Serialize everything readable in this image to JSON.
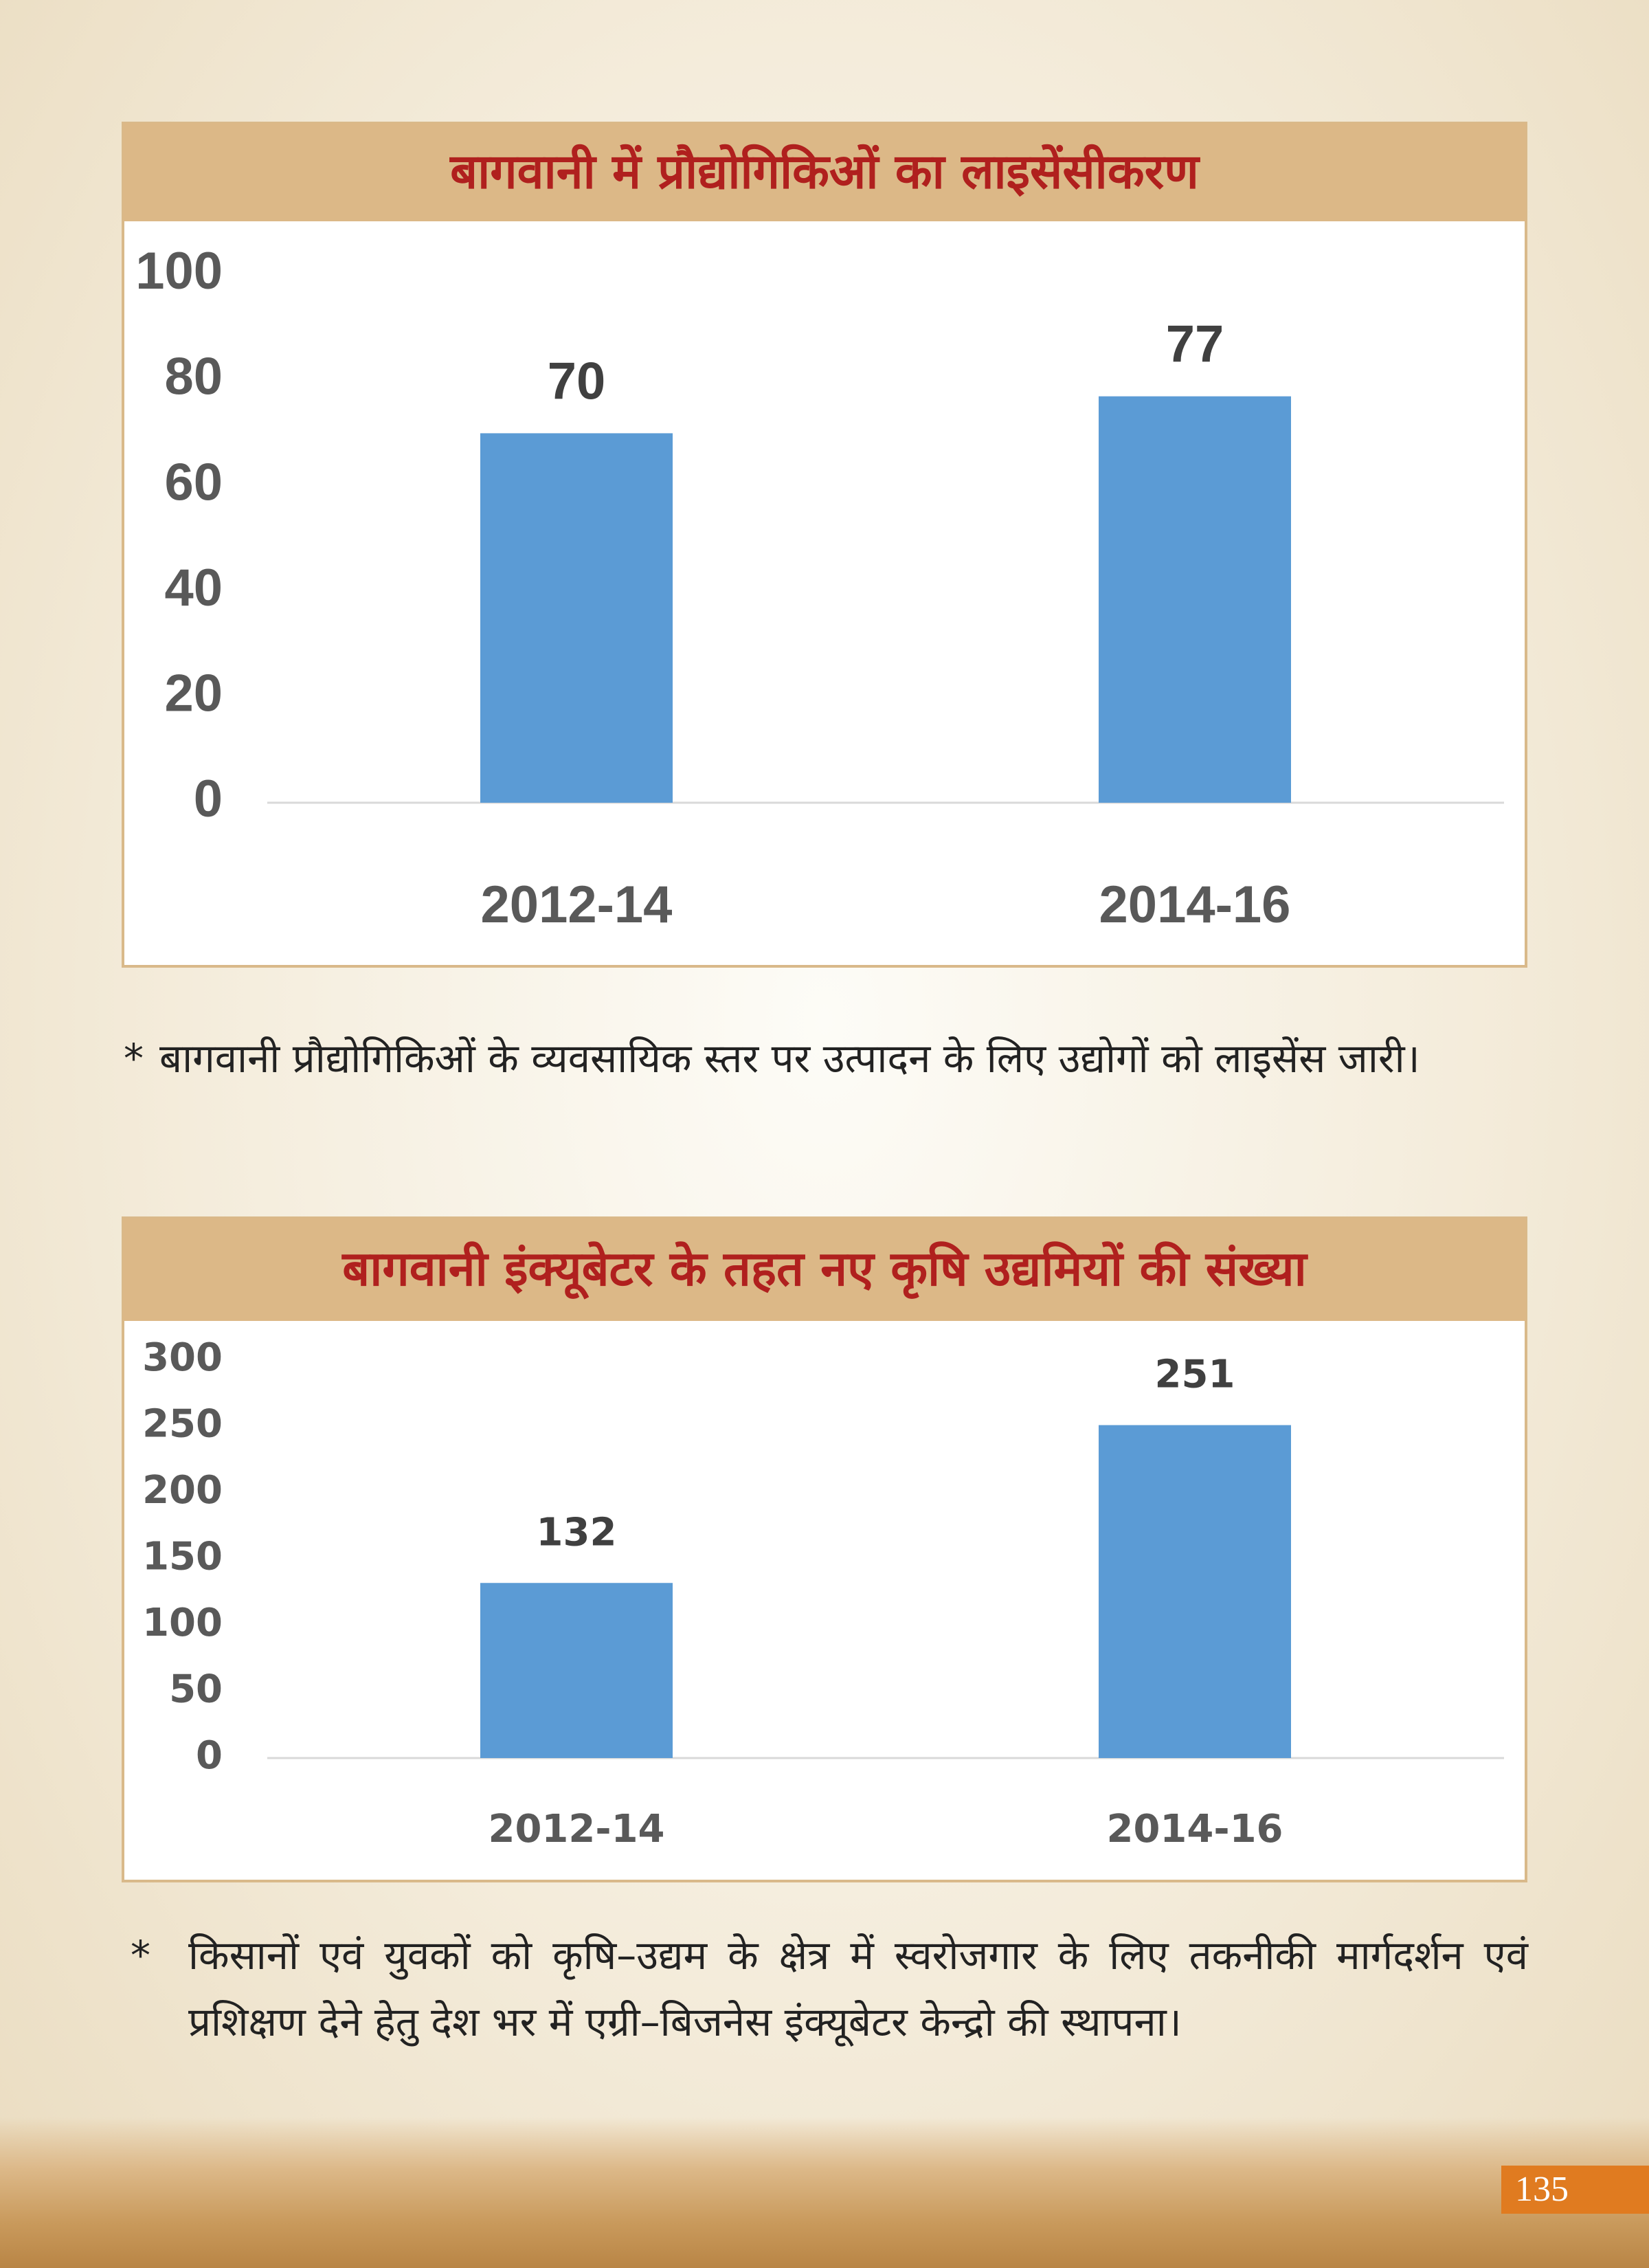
{
  "chart_data": [
    {
      "type": "bar",
      "title": "बागवानी में प्रौद्योगिकिओं का लाइसेंसीकरण",
      "categories": [
        "2012-14",
        "2014-16"
      ],
      "values": [
        70,
        77
      ],
      "color": "#5b9bd5",
      "ylim": [
        0,
        100
      ],
      "yticks": [
        0,
        20,
        40,
        60,
        80,
        100
      ]
    },
    {
      "type": "bar",
      "title": "बागवानी इंक्यूबेटर के तहत नए कृषि उद्यमियों की संख्या",
      "categories": [
        "2012-14",
        "2014-16"
      ],
      "values": [
        132,
        251
      ],
      "color": "#5b9bd5",
      "ylim": [
        0,
        300
      ],
      "yticks": [
        0,
        50,
        100,
        150,
        200,
        250,
        300
      ]
    }
  ],
  "footnotes": [
    {
      "marker": "*",
      "text": "बागवानी प्रौद्योगिकिओं के व्यवसायिक स्तर पर उत्पादन के लिए उद्योगों को लाइसेंस जारी।"
    },
    {
      "marker": "*",
      "text": "किसानों एवं युवकों को कृषि–उद्यम के क्षेत्र में स्वरोजगार के लिए तकनीकी मार्गदर्शन एवं प्रशिक्षण देने हेतु देश भर में एग्री–बिजनेस इंक्यूबेटर केन्द्रो की स्थापना।"
    }
  ],
  "page_number": 135
}
